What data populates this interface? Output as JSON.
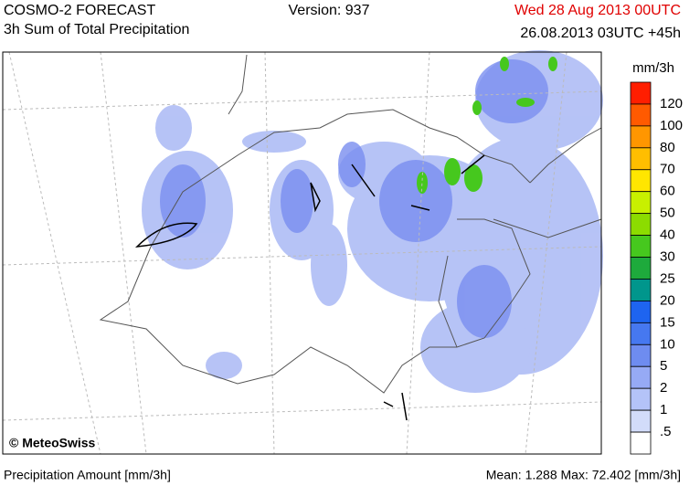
{
  "header": {
    "model": "COSMO-2 FORECAST",
    "product": "3h Sum of Total Precipitation",
    "version": "Version: 937",
    "run": "Wed 28 Aug 2013 00UTC",
    "valid": "26.08.2013 03UTC +45h"
  },
  "legend": {
    "unit": "mm/3h",
    "colors": [
      "#ff1e00",
      "#ff5a00",
      "#ff9600",
      "#ffbe00",
      "#ffe600",
      "#c8f000",
      "#8cdc00",
      "#46c81e",
      "#1eaa3c",
      "#00968c",
      "#1e64f0",
      "#4678f0",
      "#6e8cf0",
      "#96aaf5",
      "#b4c3f8",
      "#d2dcfa",
      "#ffffff"
    ],
    "labels": [
      "120",
      "100",
      "80",
      "70",
      "60",
      "50",
      "40",
      "30",
      "25",
      "20",
      "15",
      "10",
      "5",
      "2",
      "1",
      ".5"
    ]
  },
  "map": {
    "copyright": "© MeteoSwiss"
  },
  "footer": {
    "left": "Precipitation Amount [mm/3h]",
    "stats": "Mean:  1.288 Max: 72.402 [mm/3h]"
  }
}
